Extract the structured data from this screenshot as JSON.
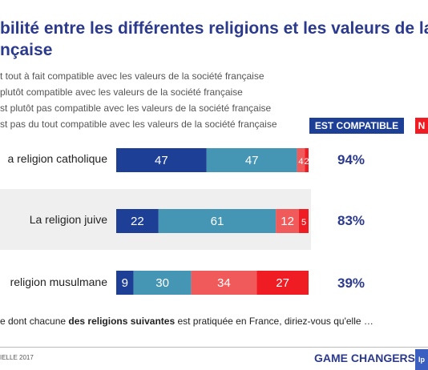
{
  "title_line1": "bilité entre les différentes religions et les valeurs de la",
  "title_line2": "nçaise",
  "legend": [
    "t tout à fait compatible avec les valeurs de la société française",
    "plutôt compatible avec les valeurs de la société française",
    "st plutôt pas compatible avec les valeurs de la société française",
    "st pas du tout compatible avec les valeurs de la société française"
  ],
  "badges": {
    "compatible": "EST COMPATIBLE",
    "not_compatible": "N"
  },
  "colors": {
    "dark_blue": "#1e3f96",
    "light_blue": "#4596b5",
    "light_red": "#f05a5a",
    "red": "#f01c24",
    "title": "#2b3a8c"
  },
  "chart_data": {
    "type": "bar",
    "orientation": "horizontal",
    "stacked": true,
    "categories": [
      "a religion catholique",
      "La religion juive",
      "religion musulmane"
    ],
    "series": [
      {
        "values": [
          47,
          22,
          9
        ]
      },
      {
        "values": [
          47,
          61,
          30
        ]
      },
      {
        "values": [
          4,
          12,
          34
        ]
      },
      {
        "values": [
          2,
          5,
          27
        ]
      }
    ],
    "totals_compatible": [
      "94%",
      "83%",
      "39%"
    ]
  },
  "footer": {
    "question": "e dont chacune des religions suivantes est pratiquée en France, diriez-vous qu'elle …",
    "question_prefix": "e dont chacune ",
    "question_bold": "des religions suivantes",
    "question_suffix": " est pratiquée en France, diriez-vous qu'elle …",
    "source": "IELLE 2017",
    "brand": "GAME CHANGERS",
    "logo": "Ip"
  }
}
